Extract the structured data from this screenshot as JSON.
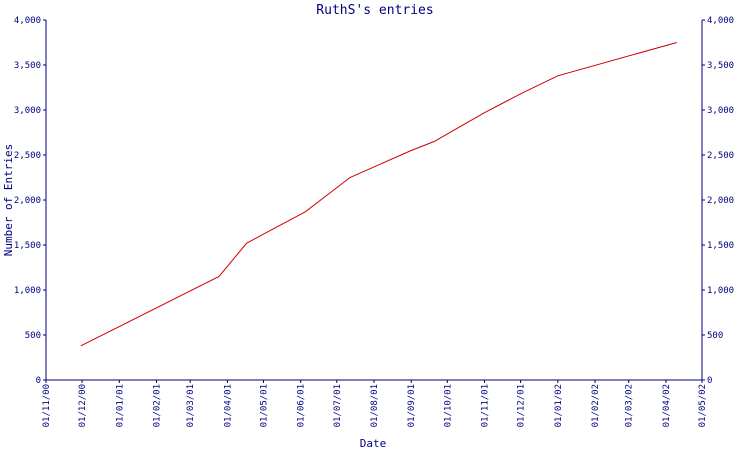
{
  "chart_data": {
    "type": "line",
    "title": "RuthS's entries",
    "xlabel": "Date",
    "ylabel": "Number of Entries",
    "ylim": [
      0,
      4000
    ],
    "yticks": [
      0,
      500,
      1000,
      1500,
      2000,
      2500,
      3000,
      3500,
      4000
    ],
    "ytick_labels": [
      "0",
      "500",
      "1,000",
      "1,500",
      "2,000",
      "2,500",
      "3,000",
      "3,500",
      "4,000"
    ],
    "xlim": [
      "2000-11-01",
      "2002-05-01"
    ],
    "xticks": [
      "2000-11-01",
      "2000-12-01",
      "2001-01-01",
      "2001-02-01",
      "2001-03-01",
      "2001-04-01",
      "2001-05-01",
      "2001-06-01",
      "2001-07-01",
      "2001-08-01",
      "2001-09-01",
      "2001-10-01",
      "2001-11-01",
      "2001-12-01",
      "2002-01-01",
      "2002-02-01",
      "2002-03-01",
      "2002-04-01",
      "2002-05-01"
    ],
    "xtick_labels": [
      "01/11/00",
      "01/12/00",
      "01/01/01",
      "01/02/01",
      "01/03/01",
      "01/04/01",
      "01/05/01",
      "01/06/01",
      "01/07/01",
      "01/08/01",
      "01/09/01",
      "01/10/01",
      "01/11/01",
      "01/12/01",
      "01/01/02",
      "01/02/02",
      "01/03/02",
      "01/04/02",
      "01/05/02"
    ],
    "grid": false,
    "series": [
      {
        "color": "#cc0000",
        "x": [
          "2000-11-30",
          "2001-03-25",
          "2001-04-17",
          "2001-06-05",
          "2001-07-12",
          "2001-09-01",
          "2001-09-20",
          "2001-11-01",
          "2001-12-01",
          "2002-01-01",
          "2002-04-10"
        ],
        "y": [
          380,
          1150,
          1520,
          1870,
          2250,
          2550,
          2650,
          2970,
          3180,
          3380,
          3750
        ]
      }
    ]
  },
  "colors": {
    "axis": "#000080",
    "text": "#000080",
    "line": "#cc0000",
    "background": "#ffffff"
  }
}
